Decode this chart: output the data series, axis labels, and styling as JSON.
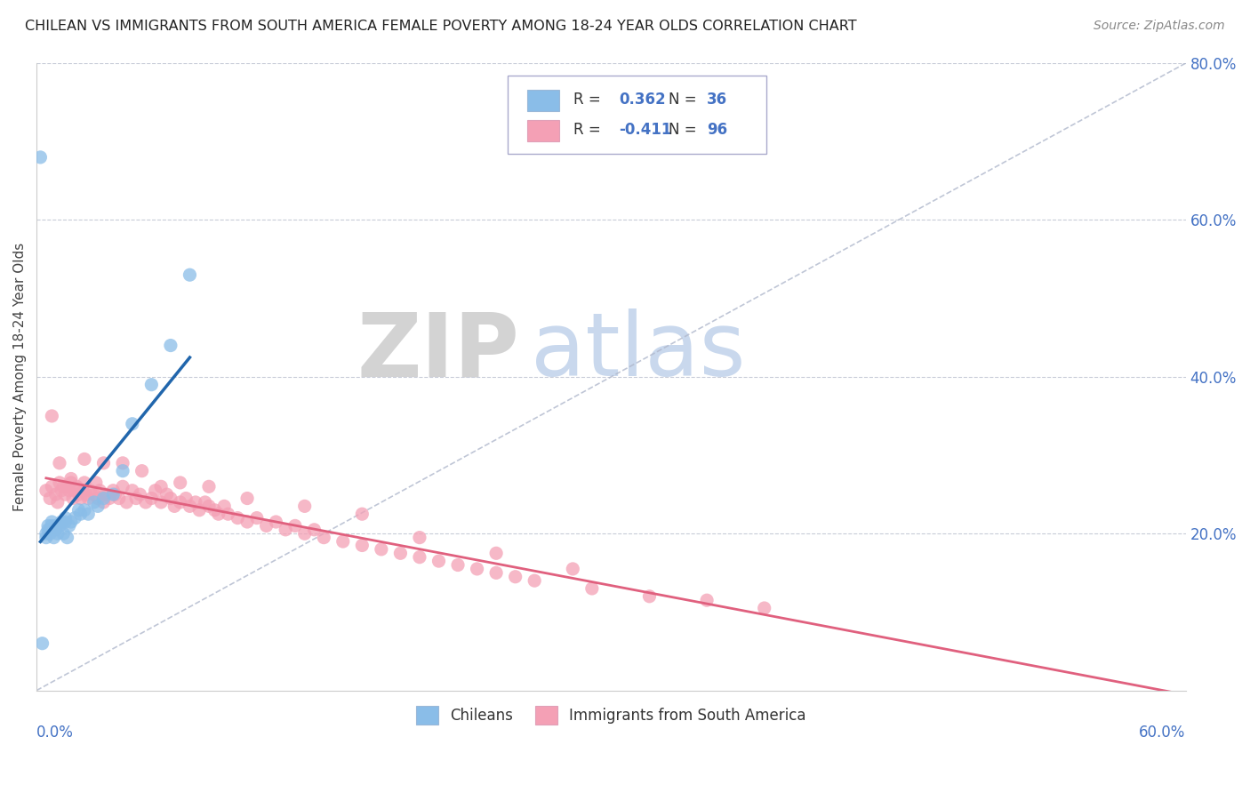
{
  "title": "CHILEAN VS IMMIGRANTS FROM SOUTH AMERICA FEMALE POVERTY AMONG 18-24 YEAR OLDS CORRELATION CHART",
  "source": "Source: ZipAtlas.com",
  "legend_label1": "Chileans",
  "legend_label2": "Immigrants from South America",
  "r1": 0.362,
  "n1": 36,
  "r2": -0.411,
  "n2": 96,
  "color_blue": "#8abde8",
  "color_pink": "#f4a0b5",
  "color_blue_line": "#2166ac",
  "color_pink_line": "#e0607e",
  "xlim": [
    0.0,
    0.6
  ],
  "ylim": [
    0.0,
    0.8
  ],
  "ylabel": "Female Poverty Among 18-24 Year Olds",
  "watermark_zip": "ZIP",
  "watermark_atlas": "atlas",
  "chileans_x": [
    0.005,
    0.005,
    0.006,
    0.006,
    0.007,
    0.007,
    0.008,
    0.008,
    0.009,
    0.01,
    0.01,
    0.011,
    0.012,
    0.013,
    0.014,
    0.015,
    0.015,
    0.016,
    0.017,
    0.018,
    0.02,
    0.022,
    0.023,
    0.025,
    0.027,
    0.03,
    0.032,
    0.035,
    0.04,
    0.045,
    0.05,
    0.06,
    0.07,
    0.08,
    0.002,
    0.003
  ],
  "chileans_y": [
    0.195,
    0.2,
    0.205,
    0.21,
    0.2,
    0.205,
    0.21,
    0.215,
    0.195,
    0.21,
    0.205,
    0.2,
    0.21,
    0.215,
    0.2,
    0.22,
    0.215,
    0.195,
    0.21,
    0.215,
    0.22,
    0.23,
    0.225,
    0.23,
    0.225,
    0.24,
    0.235,
    0.245,
    0.25,
    0.28,
    0.34,
    0.39,
    0.44,
    0.53,
    0.68,
    0.06
  ],
  "immigrants_x": [
    0.005,
    0.007,
    0.008,
    0.01,
    0.011,
    0.012,
    0.013,
    0.014,
    0.015,
    0.016,
    0.017,
    0.018,
    0.019,
    0.02,
    0.021,
    0.022,
    0.023,
    0.024,
    0.025,
    0.026,
    0.027,
    0.028,
    0.03,
    0.031,
    0.032,
    0.033,
    0.035,
    0.036,
    0.038,
    0.04,
    0.041,
    0.043,
    0.045,
    0.047,
    0.05,
    0.052,
    0.054,
    0.057,
    0.06,
    0.062,
    0.065,
    0.068,
    0.07,
    0.072,
    0.075,
    0.078,
    0.08,
    0.083,
    0.085,
    0.088,
    0.09,
    0.093,
    0.095,
    0.098,
    0.1,
    0.105,
    0.11,
    0.115,
    0.12,
    0.125,
    0.13,
    0.135,
    0.14,
    0.145,
    0.15,
    0.16,
    0.17,
    0.18,
    0.19,
    0.2,
    0.21,
    0.22,
    0.23,
    0.24,
    0.25,
    0.26,
    0.29,
    0.32,
    0.35,
    0.38,
    0.008,
    0.012,
    0.018,
    0.025,
    0.035,
    0.045,
    0.055,
    0.065,
    0.075,
    0.09,
    0.11,
    0.14,
    0.17,
    0.2,
    0.24,
    0.28
  ],
  "immigrants_y": [
    0.255,
    0.245,
    0.26,
    0.25,
    0.24,
    0.265,
    0.255,
    0.26,
    0.25,
    0.26,
    0.255,
    0.265,
    0.245,
    0.255,
    0.26,
    0.25,
    0.245,
    0.255,
    0.265,
    0.25,
    0.245,
    0.255,
    0.25,
    0.265,
    0.245,
    0.255,
    0.24,
    0.25,
    0.245,
    0.255,
    0.25,
    0.245,
    0.26,
    0.24,
    0.255,
    0.245,
    0.25,
    0.24,
    0.245,
    0.255,
    0.24,
    0.25,
    0.245,
    0.235,
    0.24,
    0.245,
    0.235,
    0.24,
    0.23,
    0.24,
    0.235,
    0.23,
    0.225,
    0.235,
    0.225,
    0.22,
    0.215,
    0.22,
    0.21,
    0.215,
    0.205,
    0.21,
    0.2,
    0.205,
    0.195,
    0.19,
    0.185,
    0.18,
    0.175,
    0.17,
    0.165,
    0.16,
    0.155,
    0.15,
    0.145,
    0.14,
    0.13,
    0.12,
    0.115,
    0.105,
    0.35,
    0.29,
    0.27,
    0.295,
    0.29,
    0.29,
    0.28,
    0.26,
    0.265,
    0.26,
    0.245,
    0.235,
    0.225,
    0.195,
    0.175,
    0.155
  ]
}
